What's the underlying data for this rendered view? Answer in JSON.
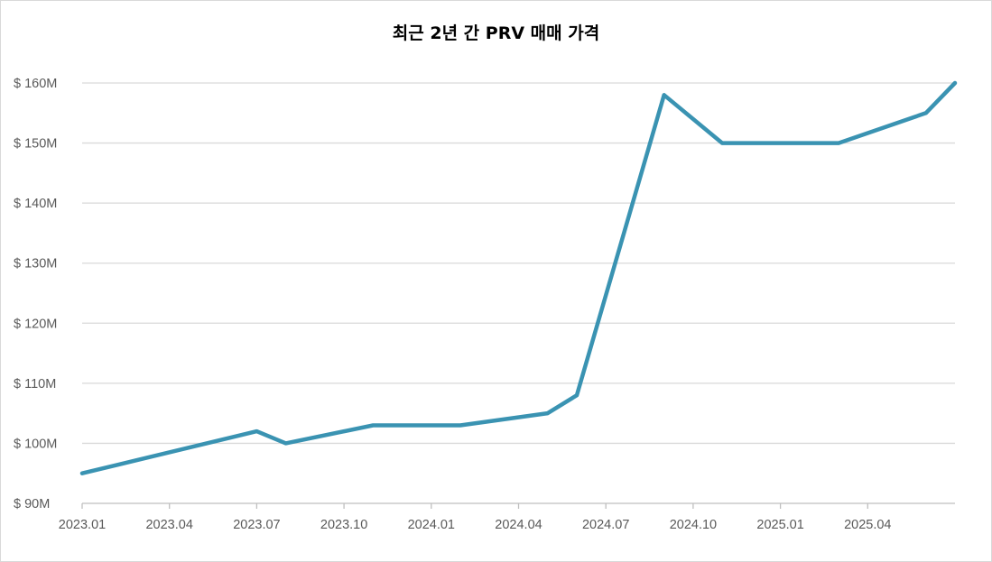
{
  "chart_data": {
    "type": "line",
    "title": "최근 2년 간 PRV 매매 가격",
    "xlabel": "",
    "ylabel": "",
    "x_tick_labels": [
      "2023.01",
      "2023.04",
      "2023.07",
      "2023.10",
      "2024.01",
      "2024.04",
      "2024.07",
      "2024.10",
      "2025.01",
      "2025.04"
    ],
    "xlim": [
      "2023-01",
      "2025-07"
    ],
    "y_tick_labels": [
      "$ 90M",
      "$ 100M",
      "$ 110M",
      "$ 120M",
      "$ 130M",
      "$ 140M",
      "$ 150M",
      "$ 160M"
    ],
    "y_ticks": [
      90,
      100,
      110,
      120,
      130,
      140,
      150,
      160
    ],
    "ylim": [
      90,
      160
    ],
    "y_unit": "$M",
    "grid": "horizontal",
    "series": [
      {
        "color": "#3a93b2",
        "points": [
          {
            "x": "2023-01",
            "y": 95
          },
          {
            "x": "2023-07",
            "y": 102
          },
          {
            "x": "2023-08",
            "y": 100
          },
          {
            "x": "2023-11",
            "y": 103
          },
          {
            "x": "2024-02",
            "y": 103
          },
          {
            "x": "2024-05",
            "y": 105
          },
          {
            "x": "2024-06",
            "y": 108
          },
          {
            "x": "2024-09",
            "y": 158
          },
          {
            "x": "2024-11",
            "y": 150
          },
          {
            "x": "2025-03",
            "y": 150
          },
          {
            "x": "2025-06",
            "y": 155
          },
          {
            "x": "2025-07",
            "y": 160
          }
        ]
      }
    ]
  },
  "colors": {
    "line": "#3a93b2",
    "grid": "#d9d9d9",
    "axis_text": "#595959"
  }
}
